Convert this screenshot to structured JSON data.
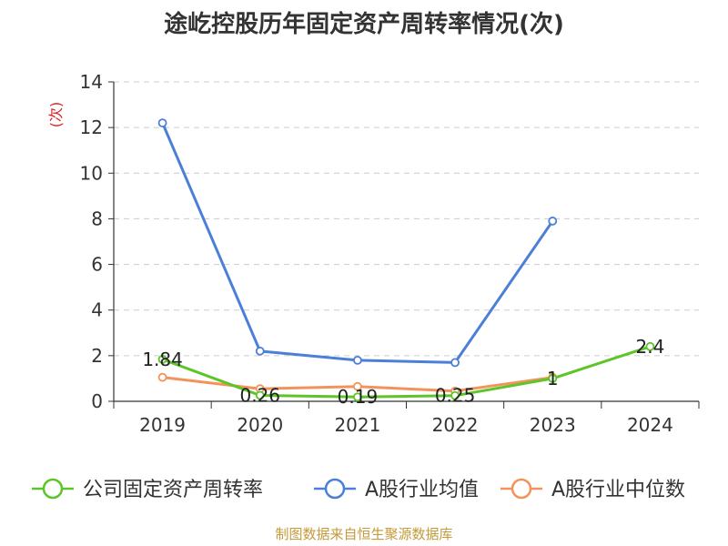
{
  "title": "途屹控股历年固定资产周转率情况(次)",
  "footer": "制图数据来自恒生聚源数据库",
  "chart_data": {
    "type": "line",
    "categories": [
      "2019",
      "2020",
      "2021",
      "2022",
      "2023",
      "2024"
    ],
    "ylabel": "(次)",
    "ylim": [
      0,
      14
    ],
    "yticks": [
      0,
      2,
      4,
      6,
      8,
      10,
      12,
      14
    ],
    "grid": true,
    "legend_position": "bottom",
    "series": [
      {
        "name": "公司固定资产周转率",
        "color": "#5dc528",
        "values": [
          1.84,
          0.26,
          0.19,
          0.25,
          1,
          2.4
        ],
        "labels": [
          "1.84",
          "0.26",
          "0.19",
          "0.25",
          "1",
          "2.4"
        ]
      },
      {
        "name": "A股行业均值",
        "color": "#4c7fd8",
        "values": [
          12.2,
          2.2,
          1.8,
          1.7,
          7.9,
          null
        ]
      },
      {
        "name": "A股行业中位数",
        "color": "#f3935c",
        "values": [
          1.05,
          0.55,
          0.65,
          0.45,
          1.05,
          null
        ]
      }
    ]
  }
}
